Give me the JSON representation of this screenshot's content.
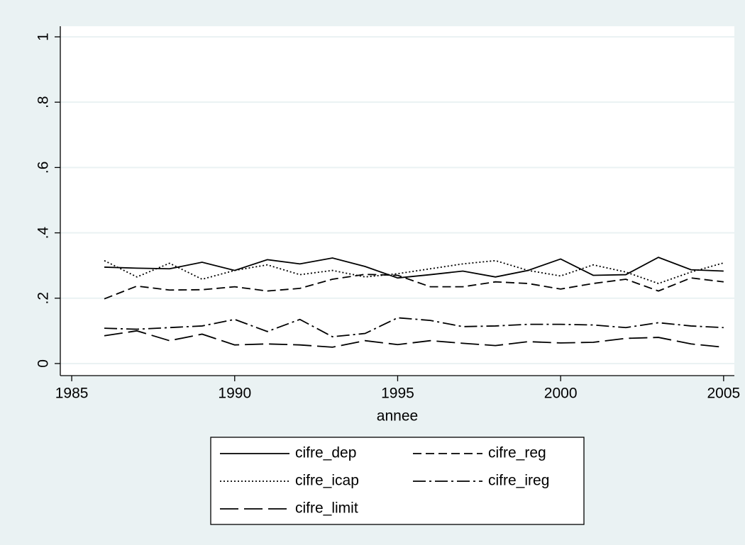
{
  "chart_data": {
    "type": "line",
    "x_label": "annee",
    "x": [
      1986,
      1987,
      1988,
      1989,
      1990,
      1991,
      1992,
      1993,
      1994,
      1995,
      1996,
      1997,
      1998,
      1999,
      2000,
      2001,
      2002,
      2003,
      2004,
      2005
    ],
    "series": [
      {
        "name": "cifre_dep",
        "color": "#000000",
        "dash": "solid",
        "values": [
          0.295,
          0.292,
          0.29,
          0.31,
          0.285,
          0.318,
          0.305,
          0.323,
          0.297,
          0.262,
          0.272,
          0.283,
          0.265,
          0.285,
          0.32,
          0.27,
          0.272,
          0.325,
          0.287,
          0.283
        ]
      },
      {
        "name": "cifre_reg",
        "color": "#000000",
        "dash": "dashed",
        "values": [
          0.198,
          0.237,
          0.225,
          0.226,
          0.235,
          0.222,
          0.23,
          0.258,
          0.273,
          0.27,
          0.235,
          0.235,
          0.25,
          0.245,
          0.228,
          0.245,
          0.258,
          0.222,
          0.262,
          0.25
        ]
      },
      {
        "name": "cifre_icap",
        "color": "#000000",
        "dash": "dotted",
        "values": [
          0.315,
          0.265,
          0.307,
          0.258,
          0.285,
          0.302,
          0.272,
          0.285,
          0.265,
          0.275,
          0.29,
          0.305,
          0.315,
          0.285,
          0.268,
          0.302,
          0.28,
          0.245,
          0.28,
          0.308
        ]
      },
      {
        "name": "cifre_ireg",
        "color": "#000000",
        "dash": "dashdot",
        "values": [
          0.108,
          0.105,
          0.11,
          0.115,
          0.135,
          0.098,
          0.135,
          0.082,
          0.092,
          0.14,
          0.132,
          0.113,
          0.115,
          0.12,
          0.12,
          0.118,
          0.11,
          0.125,
          0.115,
          0.11
        ]
      },
      {
        "name": "cifre_limit",
        "color": "#000000",
        "dash": "longdash",
        "values": [
          0.085,
          0.1,
          0.07,
          0.09,
          0.057,
          0.06,
          0.057,
          0.05,
          0.07,
          0.058,
          0.07,
          0.062,
          0.055,
          0.067,
          0.063,
          0.065,
          0.077,
          0.08,
          0.06,
          0.05
        ]
      }
    ],
    "xlim": [
      1984.65,
      2005.33
    ],
    "xticks": [
      1985,
      1990,
      1995,
      2000,
      2005
    ],
    "ylim": [
      -0.037,
      1.0325
    ],
    "yticks": [
      0,
      {
        "value": 0.2,
        "label": ".2"
      },
      {
        "value": 0.4,
        "label": ".4"
      },
      {
        "value": 0.6,
        "label": ".6"
      },
      {
        "value": 0.8,
        "label": ".8"
      },
      1
    ],
    "grid": true,
    "legend": "bottom"
  }
}
